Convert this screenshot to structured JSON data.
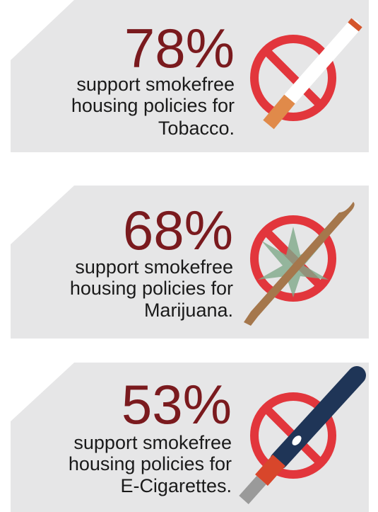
{
  "panels": [
    {
      "percent": "78%",
      "lines": [
        "support smokefree",
        "housing policies for",
        "Tobacco."
      ]
    },
    {
      "percent": "68%",
      "lines": [
        "support smokefree",
        "housing policies for",
        "Marijuana."
      ]
    },
    {
      "percent": "53%",
      "lines": [
        "support smokefree",
        "housing policies for",
        "E-Cigarettes."
      ]
    }
  ]
}
